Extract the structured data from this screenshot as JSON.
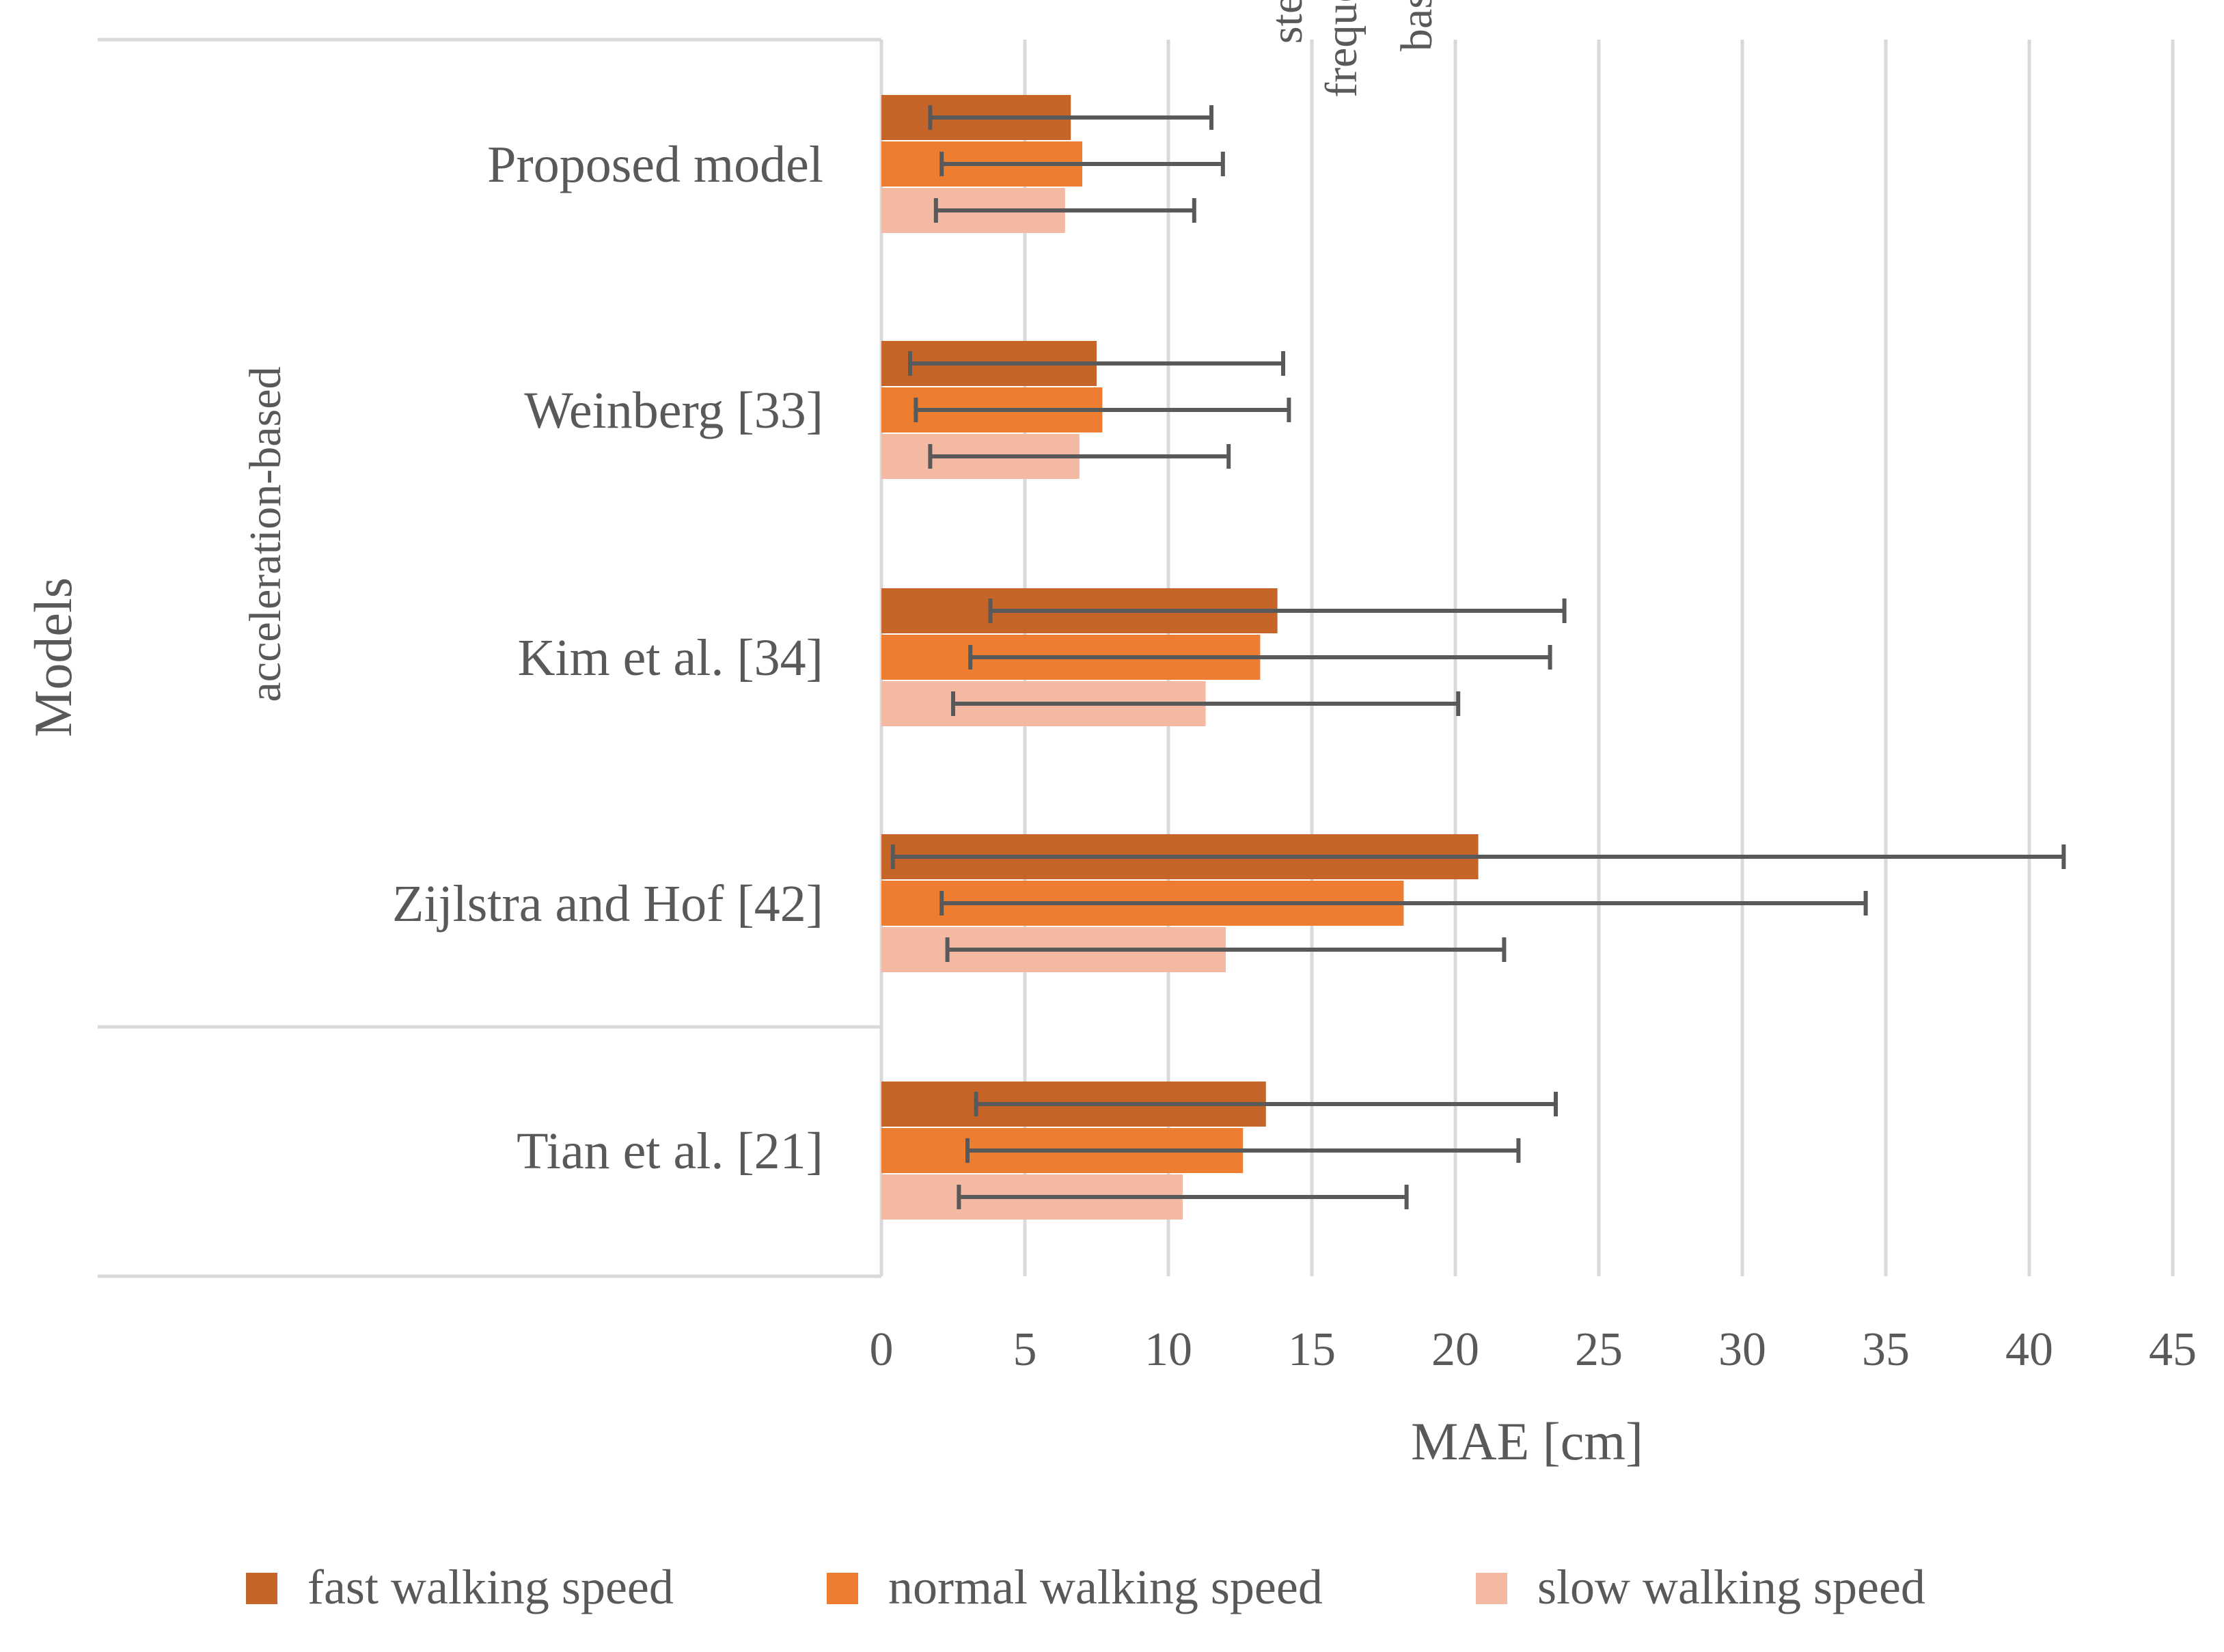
{
  "chart_data": {
    "type": "bar",
    "orientation": "horizontal",
    "title": "",
    "xlabel": "MAE [cm]",
    "ylabel": "Models",
    "xlim": [
      0,
      45
    ],
    "xticks": [
      0,
      5,
      10,
      15,
      20,
      25,
      30,
      35,
      40,
      45
    ],
    "grid": "vertical",
    "legend_position": "bottom",
    "groups": [
      {
        "label": "acceleration-based",
        "categories": [
          "Proposed model",
          "Weinberg [33]",
          "Kim et al. [34]",
          "Zijlstra and Hof [42]"
        ]
      },
      {
        "label": "step-frequency-based",
        "label_lines": [
          "step-",
          "frequency-",
          "based"
        ],
        "categories": [
          "Tian et al. [21]"
        ]
      }
    ],
    "categories": [
      "Proposed model",
      "Weinberg [33]",
      "Kim et al. [34]",
      "Zijlstra and Hof [42]",
      "Tian et al. [21]"
    ],
    "series": [
      {
        "name": "fast walking speed",
        "color": "#C5652A",
        "values": [
          6.6,
          7.5,
          13.8,
          20.8,
          13.4
        ],
        "errors": [
          4.9,
          6.5,
          10.0,
          20.4,
          10.1
        ]
      },
      {
        "name": "normal walking speed",
        "color": "#ED7D31",
        "values": [
          7.0,
          7.7,
          13.2,
          18.2,
          12.6
        ],
        "errors": [
          4.9,
          6.5,
          10.1,
          16.1,
          9.6
        ]
      },
      {
        "name": "slow walking speed",
        "color": "#F4B9A3",
        "values": [
          6.4,
          6.9,
          11.3,
          12.0,
          10.5
        ],
        "errors": [
          4.5,
          5.2,
          8.8,
          9.7,
          7.8
        ]
      }
    ]
  }
}
